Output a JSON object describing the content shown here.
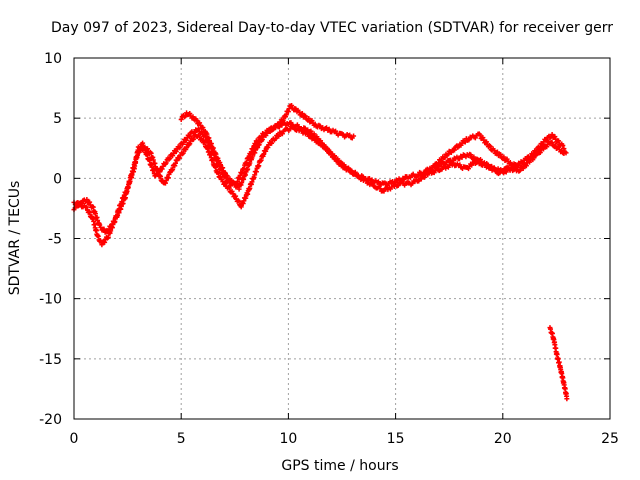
{
  "chart_data": {
    "type": "scatter",
    "title": "Day 097 of 2023, Sidereal Day-to-day VTEC variation (SDTVAR) for receiver gerr",
    "xlabel": "GPS time / hours",
    "ylabel": "SDTVAR / TECUs",
    "xlim": [
      0,
      25
    ],
    "ylim": [
      -20,
      10
    ],
    "xticks": [
      0,
      5,
      10,
      15,
      20,
      25
    ],
    "yticks": [
      -20,
      -15,
      -10,
      -5,
      0,
      5,
      10
    ],
    "grid": true,
    "marker_color": "#ff0000",
    "series": [
      {
        "name": "main-trace-a",
        "x": [
          0.0,
          0.3,
          0.6,
          0.9,
          1.1,
          1.3,
          1.6,
          1.9,
          2.2,
          2.5,
          2.8,
          3.0,
          3.2,
          3.5,
          3.8,
          4.0,
          4.3,
          4.6,
          4.9,
          5.2,
          5.5,
          5.8,
          6.1,
          6.4,
          6.7,
          7.0,
          7.3,
          7.6,
          7.9,
          8.2,
          8.5,
          8.8,
          9.1,
          9.4,
          9.7,
          10.0,
          10.3,
          10.6,
          10.9,
          11.2,
          11.5,
          11.8,
          12.1,
          12.4,
          12.7,
          13.0,
          13.3,
          13.6,
          13.9,
          14.2,
          14.5,
          14.8,
          15.1,
          15.4,
          15.7,
          16.0,
          16.3,
          16.6,
          16.9,
          17.2,
          17.5,
          17.8,
          18.1,
          18.4,
          18.7,
          19.0,
          19.3,
          19.6,
          19.9,
          20.2,
          20.5,
          20.8,
          21.1,
          21.4,
          21.7,
          22.0,
          22.3,
          22.6,
          22.9
        ],
        "y": [
          -2.0,
          -2.2,
          -2.5,
          -3.5,
          -4.8,
          -5.5,
          -4.8,
          -3.5,
          -2.0,
          -0.8,
          0.8,
          2.5,
          2.8,
          1.5,
          0.2,
          0.6,
          1.4,
          2.0,
          2.6,
          3.2,
          3.8,
          4.0,
          3.5,
          2.5,
          1.2,
          0.2,
          -0.5,
          -0.3,
          0.8,
          2.0,
          3.0,
          3.6,
          4.0,
          4.2,
          4.5,
          4.6,
          4.4,
          4.2,
          4.0,
          3.6,
          3.0,
          2.4,
          1.8,
          1.2,
          0.8,
          0.5,
          0.2,
          0.0,
          -0.2,
          -0.4,
          -0.5,
          -0.4,
          -0.2,
          0.0,
          0.2,
          0.3,
          0.5,
          0.8,
          1.0,
          1.2,
          1.4,
          1.6,
          1.8,
          2.0,
          1.6,
          1.2,
          1.0,
          0.8,
          0.6,
          0.8,
          1.0,
          1.2,
          1.6,
          2.0,
          2.6,
          3.2,
          3.6,
          3.0,
          2.5
        ]
      },
      {
        "name": "main-trace-b",
        "x": [
          0.0,
          0.3,
          0.6,
          0.9,
          1.2,
          1.5,
          1.8,
          2.1,
          2.4,
          2.7,
          3.0,
          3.3,
          3.6,
          3.9,
          4.2,
          4.5,
          4.8,
          5.1,
          5.4,
          5.7,
          6.0,
          6.3,
          6.6,
          6.9,
          7.2,
          7.5,
          7.8,
          8.1,
          8.4,
          8.7,
          9.0,
          9.3,
          9.6,
          9.9,
          10.2,
          10.5,
          10.8,
          11.1,
          11.4,
          11.7,
          12.0,
          12.3,
          12.6,
          12.9,
          13.2,
          13.5,
          13.8,
          14.1,
          14.4,
          14.7,
          15.0,
          15.3,
          15.6,
          15.9,
          16.2,
          16.5,
          16.8,
          17.1,
          17.4,
          17.7,
          18.0,
          18.3,
          18.6,
          18.9,
          19.2,
          19.5,
          19.8,
          20.1,
          20.4,
          20.7,
          21.0,
          21.3,
          21.6,
          21.9,
          22.2,
          22.5,
          22.8,
          23.0
        ],
        "y": [
          -2.5,
          -2.0,
          -1.8,
          -2.5,
          -4.0,
          -4.5,
          -3.8,
          -2.8,
          -1.5,
          0.5,
          2.2,
          2.6,
          2.0,
          0.5,
          -0.5,
          0.5,
          1.5,
          2.2,
          3.0,
          3.6,
          3.2,
          2.2,
          0.8,
          -0.2,
          -0.8,
          -1.5,
          -2.3,
          -1.2,
          0.2,
          1.5,
          2.6,
          3.2,
          3.7,
          4.0,
          4.2,
          4.0,
          3.8,
          3.4,
          3.0,
          2.6,
          2.0,
          1.5,
          1.0,
          0.6,
          0.2,
          -0.1,
          -0.4,
          -0.7,
          -1.0,
          -0.8,
          -0.6,
          -0.4,
          -0.5,
          -0.3,
          0.0,
          0.4,
          0.6,
          0.8,
          1.0,
          1.2,
          1.0,
          0.8,
          1.2,
          1.5,
          1.2,
          0.8,
          0.5,
          0.6,
          0.8,
          0.6,
          1.0,
          1.5,
          2.0,
          2.5,
          3.0,
          2.6,
          2.2,
          2.0
        ]
      },
      {
        "name": "main-trace-c",
        "x": [
          5.0,
          5.3,
          5.6,
          5.9,
          6.2,
          6.5,
          6.8,
          7.1,
          7.4,
          7.7,
          8.0,
          8.3,
          8.6,
          8.9,
          9.2,
          9.5,
          9.8,
          10.1,
          10.4,
          10.7,
          11.0,
          11.3,
          11.6,
          11.9,
          12.2,
          12.5,
          12.8,
          13.1
        ],
        "y": [
          5.0,
          5.4,
          5.0,
          4.4,
          3.6,
          2.4,
          1.2,
          0.2,
          -0.4,
          -0.8,
          0.4,
          1.8,
          2.8,
          3.6,
          4.1,
          4.4,
          5.0,
          6.0,
          5.6,
          5.2,
          4.8,
          4.4,
          4.2,
          4.0,
          3.8,
          3.6,
          3.5,
          3.4
        ]
      },
      {
        "name": "main-trace-d",
        "x": [
          16.5,
          16.8,
          17.1,
          17.4,
          17.7,
          18.0,
          18.3,
          18.6,
          18.9,
          19.2,
          19.5,
          19.8,
          20.1,
          20.4,
          20.7
        ],
        "y": [
          0.5,
          1.0,
          1.5,
          2.0,
          2.4,
          2.8,
          3.2,
          3.4,
          3.6,
          3.0,
          2.4,
          2.0,
          1.6,
          1.2,
          1.0
        ]
      },
      {
        "name": "outlier-trace",
        "x": [
          22.2,
          22.3,
          22.4,
          22.5,
          22.6,
          22.65,
          22.7,
          22.75,
          22.8,
          22.85,
          22.9,
          22.95,
          23.0
        ],
        "y": [
          -12.5,
          -12.9,
          -13.6,
          -14.5,
          -15.2,
          -15.5,
          -15.9,
          -16.3,
          -16.7,
          -17.1,
          -17.5,
          -17.9,
          -18.3
        ]
      }
    ]
  }
}
